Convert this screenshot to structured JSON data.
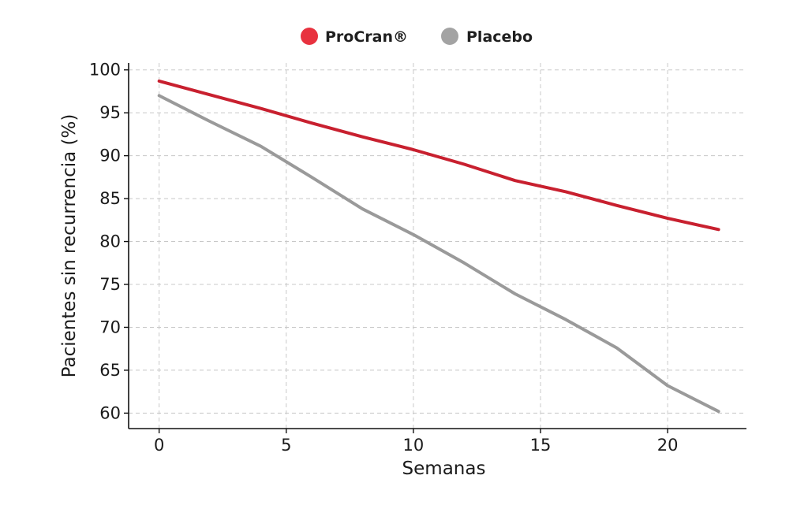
{
  "chart_data": {
    "type": "line",
    "title": "",
    "xlabel": "Semanas",
    "ylabel": "Pacientes sin recurrencia (%)",
    "xlim": [
      -1.2,
      23.1
    ],
    "ylim": [
      58.2,
      100.8
    ],
    "x_ticks": [
      0,
      5,
      10,
      15,
      20
    ],
    "y_ticks": [
      60,
      65,
      70,
      75,
      80,
      85,
      90,
      95,
      100
    ],
    "grid": true,
    "legend_position": "top-center",
    "series": [
      {
        "name": "ProCran®",
        "color": "#c8202f",
        "marker_color": "#e8323f",
        "x": [
          0,
          2,
          4,
          6,
          8,
          10,
          12,
          14,
          16,
          18,
          20,
          22
        ],
        "y": [
          98.7,
          97.1,
          95.5,
          93.8,
          92.2,
          90.7,
          89.0,
          87.1,
          85.8,
          84.2,
          82.7,
          81.4
        ]
      },
      {
        "name": "Placebo",
        "color": "#9a9a9a",
        "marker_color": "#a3a3a3",
        "x": [
          0,
          2,
          4,
          6,
          8,
          10,
          12,
          14,
          16,
          18,
          20,
          22
        ],
        "y": [
          97.0,
          94.0,
          91.1,
          87.5,
          83.8,
          80.8,
          77.5,
          73.9,
          70.9,
          67.6,
          63.2,
          60.2
        ]
      }
    ]
  }
}
